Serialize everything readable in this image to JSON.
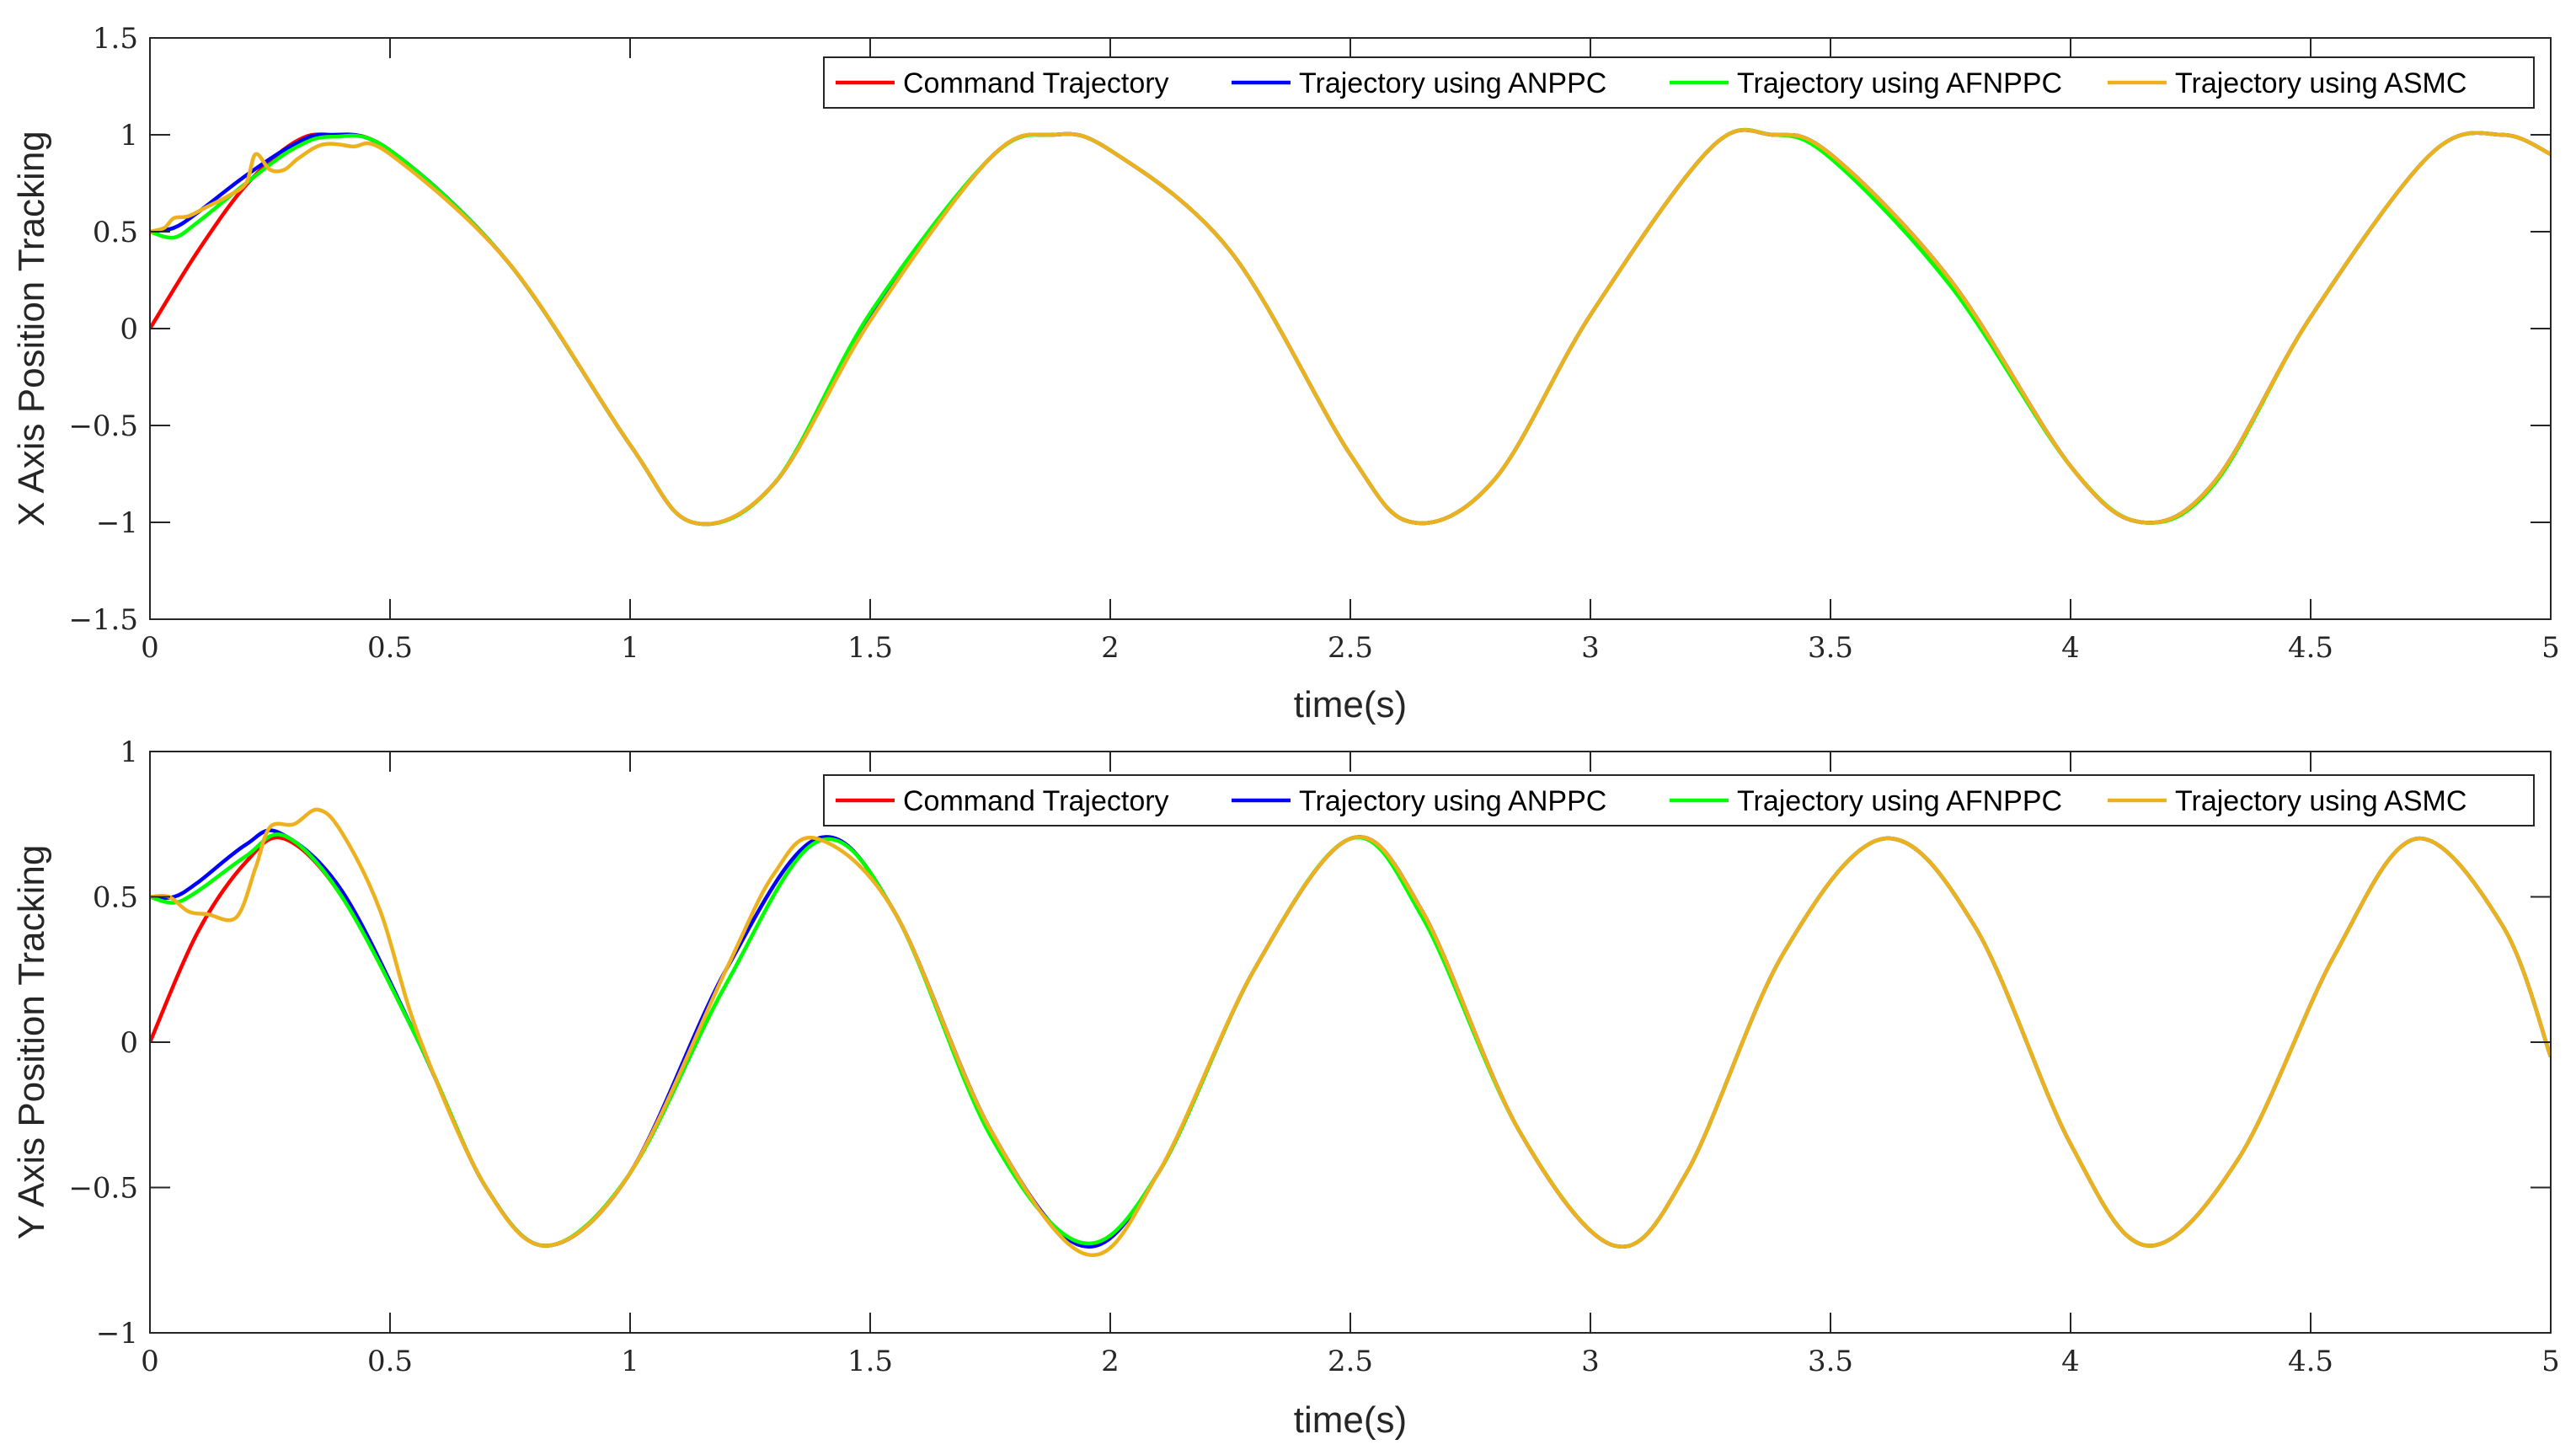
{
  "chart_data": [
    {
      "type": "line",
      "ylabel": "X Axis Position Tracking",
      "xlabel": "time(s)",
      "xlim": [
        0,
        5
      ],
      "ylim": [
        -1.5,
        1.5
      ],
      "xticks": [
        0,
        0.5,
        1,
        1.5,
        2,
        2.5,
        3,
        3.5,
        4,
        4.5,
        5
      ],
      "yticks": [
        -1.5,
        -1,
        -0.5,
        0,
        0.5,
        1,
        1.5
      ],
      "xtick_labels": [
        "0",
        "0.5",
        "1",
        "1.5",
        "2",
        "2.5",
        "3",
        "3.5",
        "4",
        "4.5",
        "5"
      ],
      "ytick_labels": [
        "−1.5",
        "−1",
        "−0.5",
        "0",
        "0.5",
        "1",
        "1.5"
      ],
      "grid": false,
      "legend_position": "top-right",
      "legend_layout": "horizontal",
      "series": [
        {
          "name": "Command Trajectory",
          "color": "#ff0000",
          "x": [
            0,
            0.1,
            0.2,
            0.3,
            0.375,
            0.5,
            0.75,
            1.0,
            1.13,
            1.3,
            1.5,
            1.75,
            1.88,
            2.0,
            2.25,
            2.5,
            2.63,
            2.8,
            3.0,
            3.25,
            3.38,
            3.5,
            3.75,
            4.0,
            4.15,
            4.3,
            4.5,
            4.75,
            4.9,
            5.0
          ],
          "y": [
            0,
            0.4,
            0.74,
            0.96,
            1.0,
            0.92,
            0.33,
            -0.6,
            -1.0,
            -0.8,
            0.05,
            0.88,
            1.0,
            0.92,
            0.4,
            -0.65,
            -1.0,
            -0.78,
            0.07,
            0.93,
            1.0,
            0.9,
            0.25,
            -0.71,
            -1.0,
            -0.79,
            0.06,
            0.9,
            1.0,
            0.9
          ]
        },
        {
          "name": "Trajectory using ANPPC",
          "color": "#0000ff",
          "x": [
            0,
            0.05,
            0.1,
            0.2,
            0.3,
            0.37,
            0.5,
            0.75,
            1.0,
            1.13,
            1.3,
            1.5,
            1.75,
            1.88,
            2.0,
            2.25,
            2.5,
            2.63,
            2.8,
            3.0,
            3.25,
            3.38,
            3.5,
            3.75,
            4.0,
            4.15,
            4.3,
            4.5,
            4.75,
            4.9,
            5.0
          ],
          "y": [
            0.5,
            0.52,
            0.6,
            0.79,
            0.95,
            1.0,
            0.92,
            0.33,
            -0.6,
            -1.0,
            -0.8,
            0.05,
            0.88,
            1.0,
            0.92,
            0.4,
            -0.65,
            -1.0,
            -0.78,
            0.07,
            0.93,
            1.0,
            0.9,
            0.25,
            -0.71,
            -1.0,
            -0.79,
            0.06,
            0.9,
            1.0,
            0.9
          ]
        },
        {
          "name": "Trajectory using AFNPPC",
          "color": "#00ff00",
          "x": [
            0,
            0.05,
            0.1,
            0.2,
            0.3,
            0.38,
            0.5,
            0.75,
            1.0,
            1.13,
            1.3,
            1.5,
            1.75,
            1.88,
            2.0,
            2.25,
            2.5,
            2.63,
            2.8,
            3.0,
            3.25,
            3.38,
            3.5,
            3.75,
            4.0,
            4.15,
            4.3,
            4.5,
            4.75,
            4.9,
            5.0
          ],
          "y": [
            0.5,
            0.47,
            0.55,
            0.75,
            0.93,
            0.99,
            0.92,
            0.33,
            -0.6,
            -1.0,
            -0.8,
            0.08,
            0.88,
            1.0,
            0.92,
            0.4,
            -0.65,
            -1.0,
            -0.78,
            0.07,
            0.93,
            1.0,
            0.88,
            0.22,
            -0.71,
            -1.0,
            -0.8,
            0.06,
            0.9,
            1.0,
            0.9
          ]
        },
        {
          "name": "Trajectory using ASMC",
          "color": "#edb120",
          "x": [
            0,
            0.03,
            0.05,
            0.08,
            0.12,
            0.16,
            0.2,
            0.22,
            0.25,
            0.28,
            0.31,
            0.36,
            0.42,
            0.5,
            0.75,
            1.0,
            1.13,
            1.3,
            1.5,
            1.75,
            1.88,
            2.0,
            2.25,
            2.5,
            2.63,
            2.8,
            3.0,
            3.25,
            3.38,
            3.5,
            3.75,
            4.0,
            4.15,
            4.3,
            4.5,
            4.75,
            4.9,
            5.0
          ],
          "y": [
            0.5,
            0.52,
            0.57,
            0.58,
            0.63,
            0.68,
            0.75,
            0.9,
            0.82,
            0.82,
            0.88,
            0.95,
            0.94,
            0.9,
            0.33,
            -0.6,
            -1.0,
            -0.8,
            0.04,
            0.88,
            1.0,
            0.92,
            0.4,
            -0.65,
            -1.0,
            -0.78,
            0.07,
            0.93,
            1.0,
            0.9,
            0.25,
            -0.71,
            -1.0,
            -0.79,
            0.06,
            0.9,
            1.0,
            0.9
          ]
        }
      ]
    },
    {
      "type": "line",
      "ylabel": "Y Axis Position Tracking",
      "xlabel": "time(s)",
      "xlim": [
        0,
        5
      ],
      "ylim": [
        -1,
        1
      ],
      "xticks": [
        0,
        0.5,
        1,
        1.5,
        2,
        2.5,
        3,
        3.5,
        4,
        4.5,
        5
      ],
      "yticks": [
        -1,
        -0.5,
        0,
        0.5,
        1
      ],
      "xtick_labels": [
        "0",
        "0.5",
        "1",
        "1.5",
        "2",
        "2.5",
        "3",
        "3.5",
        "4",
        "4.5",
        "5"
      ],
      "ytick_labels": [
        "−1",
        "−0.5",
        "0",
        "0.5",
        "1"
      ],
      "grid": false,
      "legend_position": "top-right",
      "legend_layout": "horizontal",
      "series": [
        {
          "name": "Command Trajectory",
          "color": "#ff0000",
          "x": [
            0,
            0.1,
            0.2,
            0.28,
            0.4,
            0.56,
            0.7,
            0.83,
            1.0,
            1.2,
            1.39,
            1.55,
            1.75,
            1.94,
            2.1,
            2.3,
            2.5,
            2.65,
            2.85,
            3.05,
            3.2,
            3.4,
            3.61,
            3.8,
            4.0,
            4.16,
            4.35,
            4.55,
            4.72,
            4.9,
            5.0
          ],
          "y": [
            0,
            0.38,
            0.62,
            0.7,
            0.5,
            0.0,
            -0.5,
            -0.7,
            -0.45,
            0.25,
            0.7,
            0.45,
            -0.3,
            -0.7,
            -0.45,
            0.25,
            0.7,
            0.45,
            -0.3,
            -0.7,
            -0.45,
            0.3,
            0.7,
            0.4,
            -0.35,
            -0.7,
            -0.4,
            0.3,
            0.7,
            0.4,
            -0.05
          ]
        },
        {
          "name": "Trajectory using ANPPC",
          "color": "#0000ff",
          "x": [
            0,
            0.05,
            0.1,
            0.2,
            0.27,
            0.4,
            0.56,
            0.7,
            0.83,
            1.0,
            1.2,
            1.39,
            1.55,
            1.75,
            1.94,
            2.1,
            2.3,
            2.5,
            2.65,
            2.85,
            3.05,
            3.2,
            3.4,
            3.61,
            3.8,
            4.0,
            4.16,
            4.35,
            4.55,
            4.72,
            4.9,
            5.0
          ],
          "y": [
            0.5,
            0.5,
            0.55,
            0.68,
            0.72,
            0.52,
            0.0,
            -0.5,
            -0.7,
            -0.45,
            0.25,
            0.7,
            0.45,
            -0.3,
            -0.7,
            -0.45,
            0.25,
            0.7,
            0.45,
            -0.3,
            -0.7,
            -0.45,
            0.3,
            0.7,
            0.4,
            -0.35,
            -0.7,
            -0.4,
            0.3,
            0.7,
            0.4,
            -0.05
          ]
        },
        {
          "name": "Trajectory using AFNPPC",
          "color": "#00ff00",
          "x": [
            0,
            0.05,
            0.1,
            0.2,
            0.28,
            0.4,
            0.56,
            0.7,
            0.83,
            1.0,
            1.2,
            1.39,
            1.55,
            1.75,
            1.94,
            2.1,
            2.3,
            2.5,
            2.65,
            2.85,
            3.05,
            3.2,
            3.4,
            3.61,
            3.8,
            4.0,
            4.16,
            4.35,
            4.55,
            4.72,
            4.9,
            5.0
          ],
          "y": [
            0.5,
            0.48,
            0.52,
            0.64,
            0.71,
            0.5,
            0.0,
            -0.5,
            -0.7,
            -0.45,
            0.2,
            0.69,
            0.45,
            -0.32,
            -0.69,
            -0.45,
            0.25,
            0.7,
            0.43,
            -0.3,
            -0.7,
            -0.45,
            0.3,
            0.7,
            0.4,
            -0.35,
            -0.7,
            -0.4,
            0.3,
            0.7,
            0.4,
            -0.05
          ]
        },
        {
          "name": "Trajectory using ASMC",
          "color": "#edb120",
          "x": [
            0,
            0.04,
            0.08,
            0.12,
            0.18,
            0.22,
            0.25,
            0.3,
            0.35,
            0.4,
            0.48,
            0.56,
            0.7,
            0.83,
            1.0,
            1.2,
            1.3,
            1.39,
            1.55,
            1.75,
            1.95,
            2.1,
            2.3,
            2.5,
            2.65,
            2.85,
            3.05,
            3.2,
            3.4,
            3.61,
            3.8,
            4.0,
            4.16,
            4.35,
            4.55,
            4.72,
            4.9,
            5.0
          ],
          "y": [
            0.5,
            0.5,
            0.45,
            0.44,
            0.43,
            0.6,
            0.74,
            0.75,
            0.8,
            0.72,
            0.45,
            0.02,
            -0.5,
            -0.7,
            -0.45,
            0.25,
            0.58,
            0.7,
            0.45,
            -0.3,
            -0.73,
            -0.45,
            0.25,
            0.7,
            0.45,
            -0.3,
            -0.7,
            -0.45,
            0.3,
            0.7,
            0.4,
            -0.35,
            -0.7,
            -0.4,
            0.3,
            0.7,
            0.4,
            -0.05
          ]
        }
      ]
    }
  ]
}
